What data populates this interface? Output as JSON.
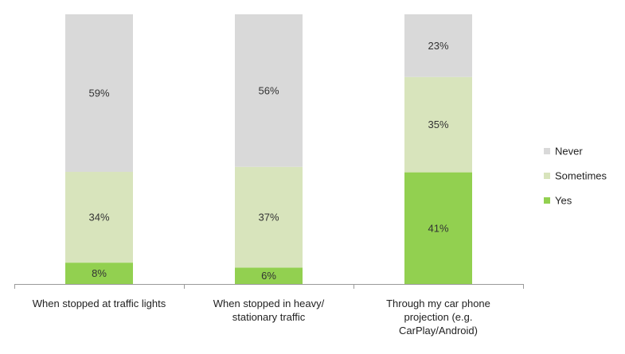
{
  "chart_data": {
    "type": "bar",
    "stacked": true,
    "percent_stacked": true,
    "categories": [
      [
        "When stopped at traffic lights"
      ],
      [
        "When stopped in heavy/",
        "stationary traffic"
      ],
      [
        "Through my car phone",
        "projection (e.g.",
        "CarPlay/Android)"
      ]
    ],
    "series": [
      {
        "name": "Yes",
        "color": "#92d050",
        "values": [
          8,
          6,
          41
        ],
        "labels": [
          "8%",
          "6%",
          "41%"
        ]
      },
      {
        "name": "Sometimes",
        "color": "#d8e4bc",
        "values": [
          34,
          37,
          35
        ],
        "labels": [
          "34%",
          "37%",
          "35%"
        ]
      },
      {
        "name": "Never",
        "color": "#d9d9d9",
        "values": [
          59,
          56,
          23
        ],
        "labels": [
          "59%",
          "56%",
          "23%"
        ]
      }
    ],
    "legend": {
      "position": "right",
      "order": [
        "Never",
        "Sometimes",
        "Yes"
      ]
    },
    "grid": false,
    "ylim": [
      0,
      100
    ]
  }
}
